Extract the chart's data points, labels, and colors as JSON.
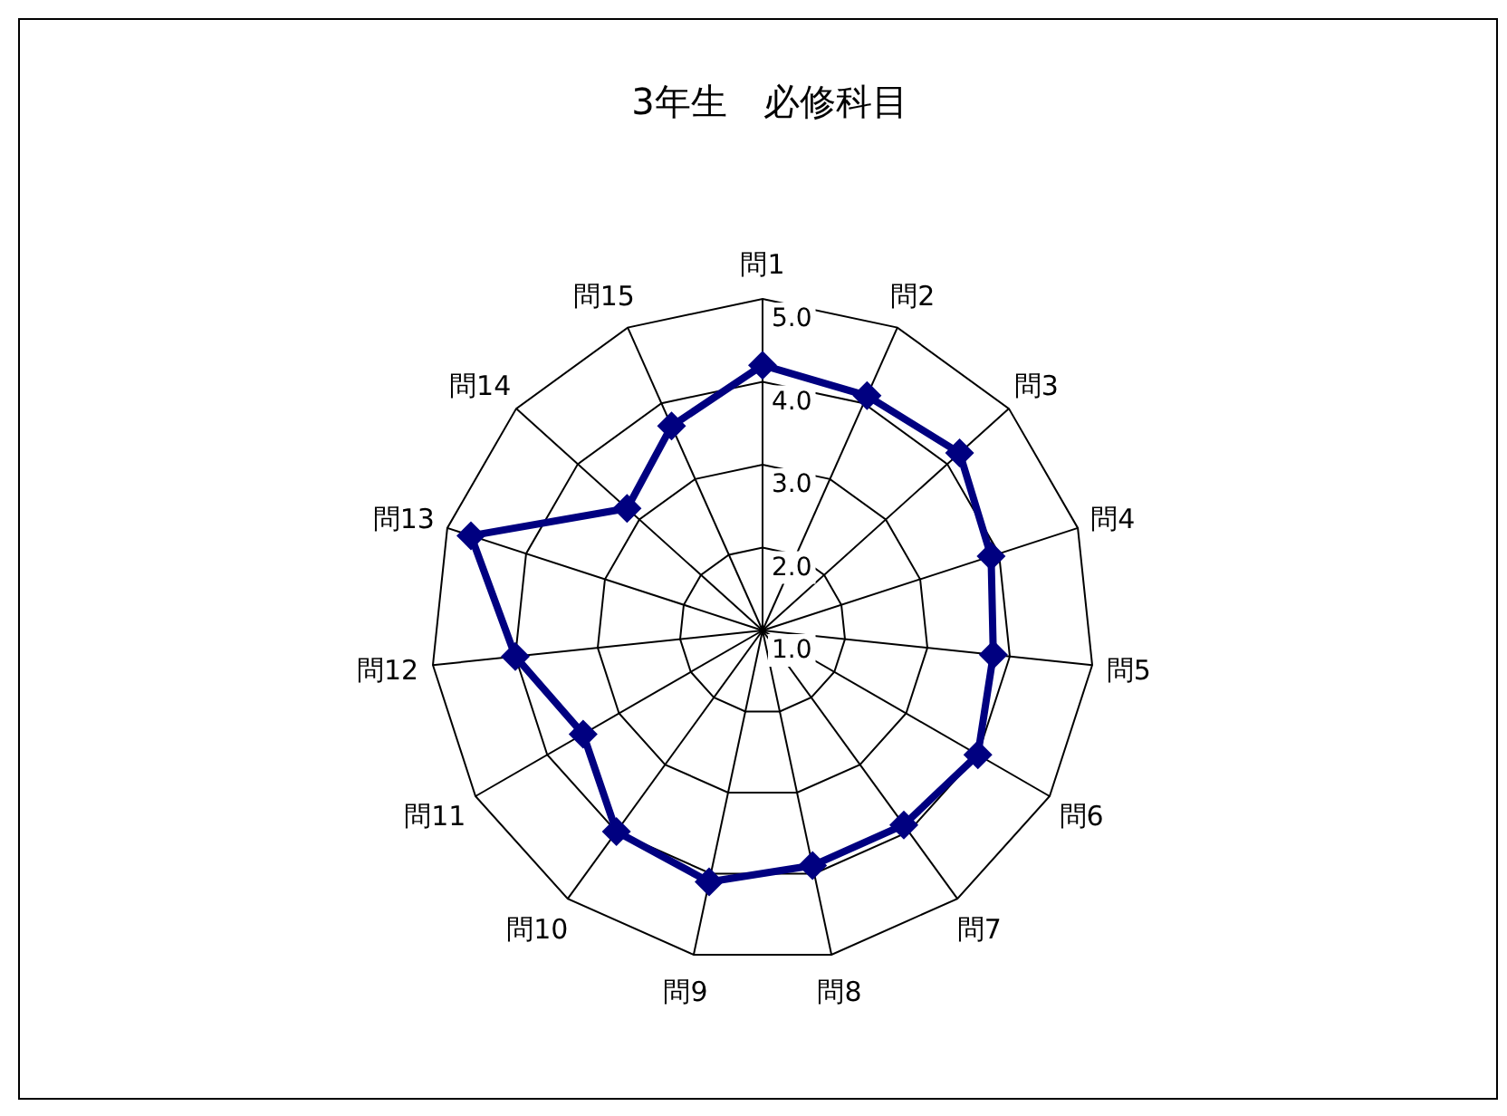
{
  "chart_data": {
    "type": "radar",
    "title": "3年生　必修科目",
    "categories": [
      "問1",
      "問2",
      "問3",
      "問4",
      "問5",
      "問6",
      "問7",
      "問8",
      "問9",
      "問10",
      "問11",
      "問12",
      "問13",
      "問14",
      "問15"
    ],
    "series": [
      {
        "color": "#000080",
        "values": [
          4.2,
          4.1,
          4.2,
          3.9,
          3.8,
          4.0,
          3.9,
          3.9,
          4.1,
          4.0,
          3.5,
          4.0,
          4.7,
          3.2,
          3.7
        ]
      }
    ],
    "ylim": [
      1,
      5
    ],
    "yticks": [
      {
        "value": 1,
        "label": "1.0"
      },
      {
        "value": 2,
        "label": "2.0"
      },
      {
        "value": 3,
        "label": "3.0"
      },
      {
        "value": 4,
        "label": "4.0"
      },
      {
        "value": 5,
        "label": "5.0"
      }
    ],
    "marker": "diamond",
    "line_style": "solid"
  }
}
